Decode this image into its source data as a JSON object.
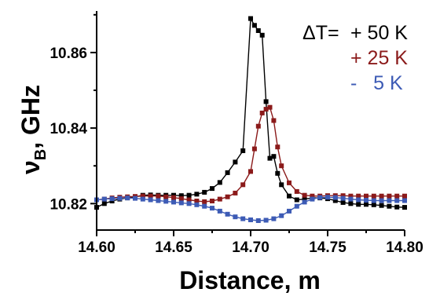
{
  "chart_data": {
    "type": "line",
    "xlabel": "Distance, m",
    "ylabel": "ν_B, GHz",
    "ylabel_main": "ν",
    "ylabel_sub": "B",
    "ylabel_rest": ", GHz",
    "xlim": [
      14.6,
      14.8
    ],
    "ylim": [
      10.813,
      10.871
    ],
    "x_ticks": [
      "14.60",
      "14.65",
      "14.70",
      "14.75",
      "14.80"
    ],
    "x_tick_values": [
      14.6,
      14.65,
      14.7,
      14.75,
      14.8
    ],
    "y_ticks": [
      "10.82",
      "10.84",
      "10.86"
    ],
    "y_tick_values": [
      10.82,
      10.84,
      10.86
    ],
    "grid": false,
    "legend": {
      "placement": "top-right",
      "prefix": "ΔT=",
      "entries": [
        "+ 50 K",
        "+ 25 K",
        "-   5 K"
      ]
    },
    "series": [
      {
        "name": "+ 50 K",
        "color": "#000000",
        "x": [
          14.6,
          14.605,
          14.61,
          14.615,
          14.62,
          14.625,
          14.63,
          14.635,
          14.64,
          14.645,
          14.65,
          14.655,
          14.66,
          14.665,
          14.67,
          14.675,
          14.68,
          14.685,
          14.69,
          14.695,
          14.7,
          14.7025,
          14.705,
          14.7075,
          14.71,
          14.7125,
          14.715,
          14.7175,
          14.72,
          14.725,
          14.73,
          14.735,
          14.74,
          14.745,
          14.75,
          14.755,
          14.76,
          14.765,
          14.77,
          14.775,
          14.78,
          14.785,
          14.79,
          14.795,
          14.8
        ],
        "values": [
          10.819,
          10.82,
          10.8207,
          10.8212,
          10.8215,
          10.8218,
          10.8222,
          10.8223,
          10.8222,
          10.8222,
          10.8222,
          10.8221,
          10.8222,
          10.8225,
          10.823,
          10.824,
          10.8256,
          10.8282,
          10.831,
          10.834,
          10.869,
          10.8672,
          10.8658,
          10.8646,
          10.847,
          10.832,
          10.8325,
          10.828,
          10.825,
          10.822,
          10.821,
          10.8212,
          10.8215,
          10.8215,
          10.8213,
          10.8208,
          10.8203,
          10.82,
          10.8198,
          10.8198,
          10.8197,
          10.8195,
          10.8193,
          10.8191,
          10.819
        ]
      },
      {
        "name": "+ 25 K",
        "color": "#8b1a1a",
        "x": [
          14.6,
          14.605,
          14.61,
          14.615,
          14.62,
          14.625,
          14.63,
          14.635,
          14.64,
          14.645,
          14.65,
          14.655,
          14.66,
          14.665,
          14.67,
          14.675,
          14.68,
          14.685,
          14.69,
          14.695,
          14.7,
          14.7025,
          14.705,
          14.7075,
          14.71,
          14.7125,
          14.715,
          14.7175,
          14.72,
          14.725,
          14.73,
          14.735,
          14.74,
          14.745,
          14.75,
          14.755,
          14.76,
          14.765,
          14.77,
          14.775,
          14.78,
          14.785,
          14.79,
          14.795,
          14.8
        ],
        "values": [
          10.821,
          10.8212,
          10.8215,
          10.8217,
          10.8218,
          10.8219,
          10.822,
          10.822,
          10.822,
          10.8218,
          10.8216,
          10.8213,
          10.821,
          10.8207,
          10.8205,
          10.8207,
          10.8212,
          10.8218,
          10.8228,
          10.825,
          10.8285,
          10.8345,
          10.8405,
          10.844,
          10.845,
          10.8455,
          10.842,
          10.835,
          10.83,
          10.8255,
          10.8232,
          10.8222,
          10.822,
          10.822,
          10.8221,
          10.8221,
          10.8221,
          10.822,
          10.822,
          10.822,
          10.822,
          10.822,
          10.822,
          10.822,
          10.822
        ]
      },
      {
        "name": "-   5 K",
        "color": "#3d5bb5",
        "x": [
          14.6,
          14.605,
          14.61,
          14.615,
          14.62,
          14.625,
          14.63,
          14.635,
          14.64,
          14.645,
          14.65,
          14.655,
          14.66,
          14.665,
          14.67,
          14.675,
          14.68,
          14.685,
          14.69,
          14.695,
          14.7,
          14.705,
          14.71,
          14.715,
          14.72,
          14.725,
          14.73,
          14.735,
          14.74,
          14.745,
          14.75,
          14.755,
          14.76,
          14.765,
          14.77,
          14.775,
          14.78,
          14.785,
          14.79,
          14.795,
          14.8
        ],
        "values": [
          10.821,
          10.8212,
          10.8213,
          10.8214,
          10.8215,
          10.8214,
          10.8212,
          10.821,
          10.8208,
          10.8206,
          10.8204,
          10.8202,
          10.82,
          10.8197,
          10.8193,
          10.8188,
          10.818,
          10.8172,
          10.8165,
          10.816,
          10.8157,
          10.8155,
          10.8156,
          10.816,
          10.8168,
          10.818,
          10.8193,
          10.8204,
          10.8212,
          10.8216,
          10.8217,
          10.8216,
          10.8214,
          10.8212,
          10.821,
          10.8209,
          10.8208,
          10.8208,
          10.8208,
          10.8208,
          10.8208
        ]
      }
    ]
  }
}
